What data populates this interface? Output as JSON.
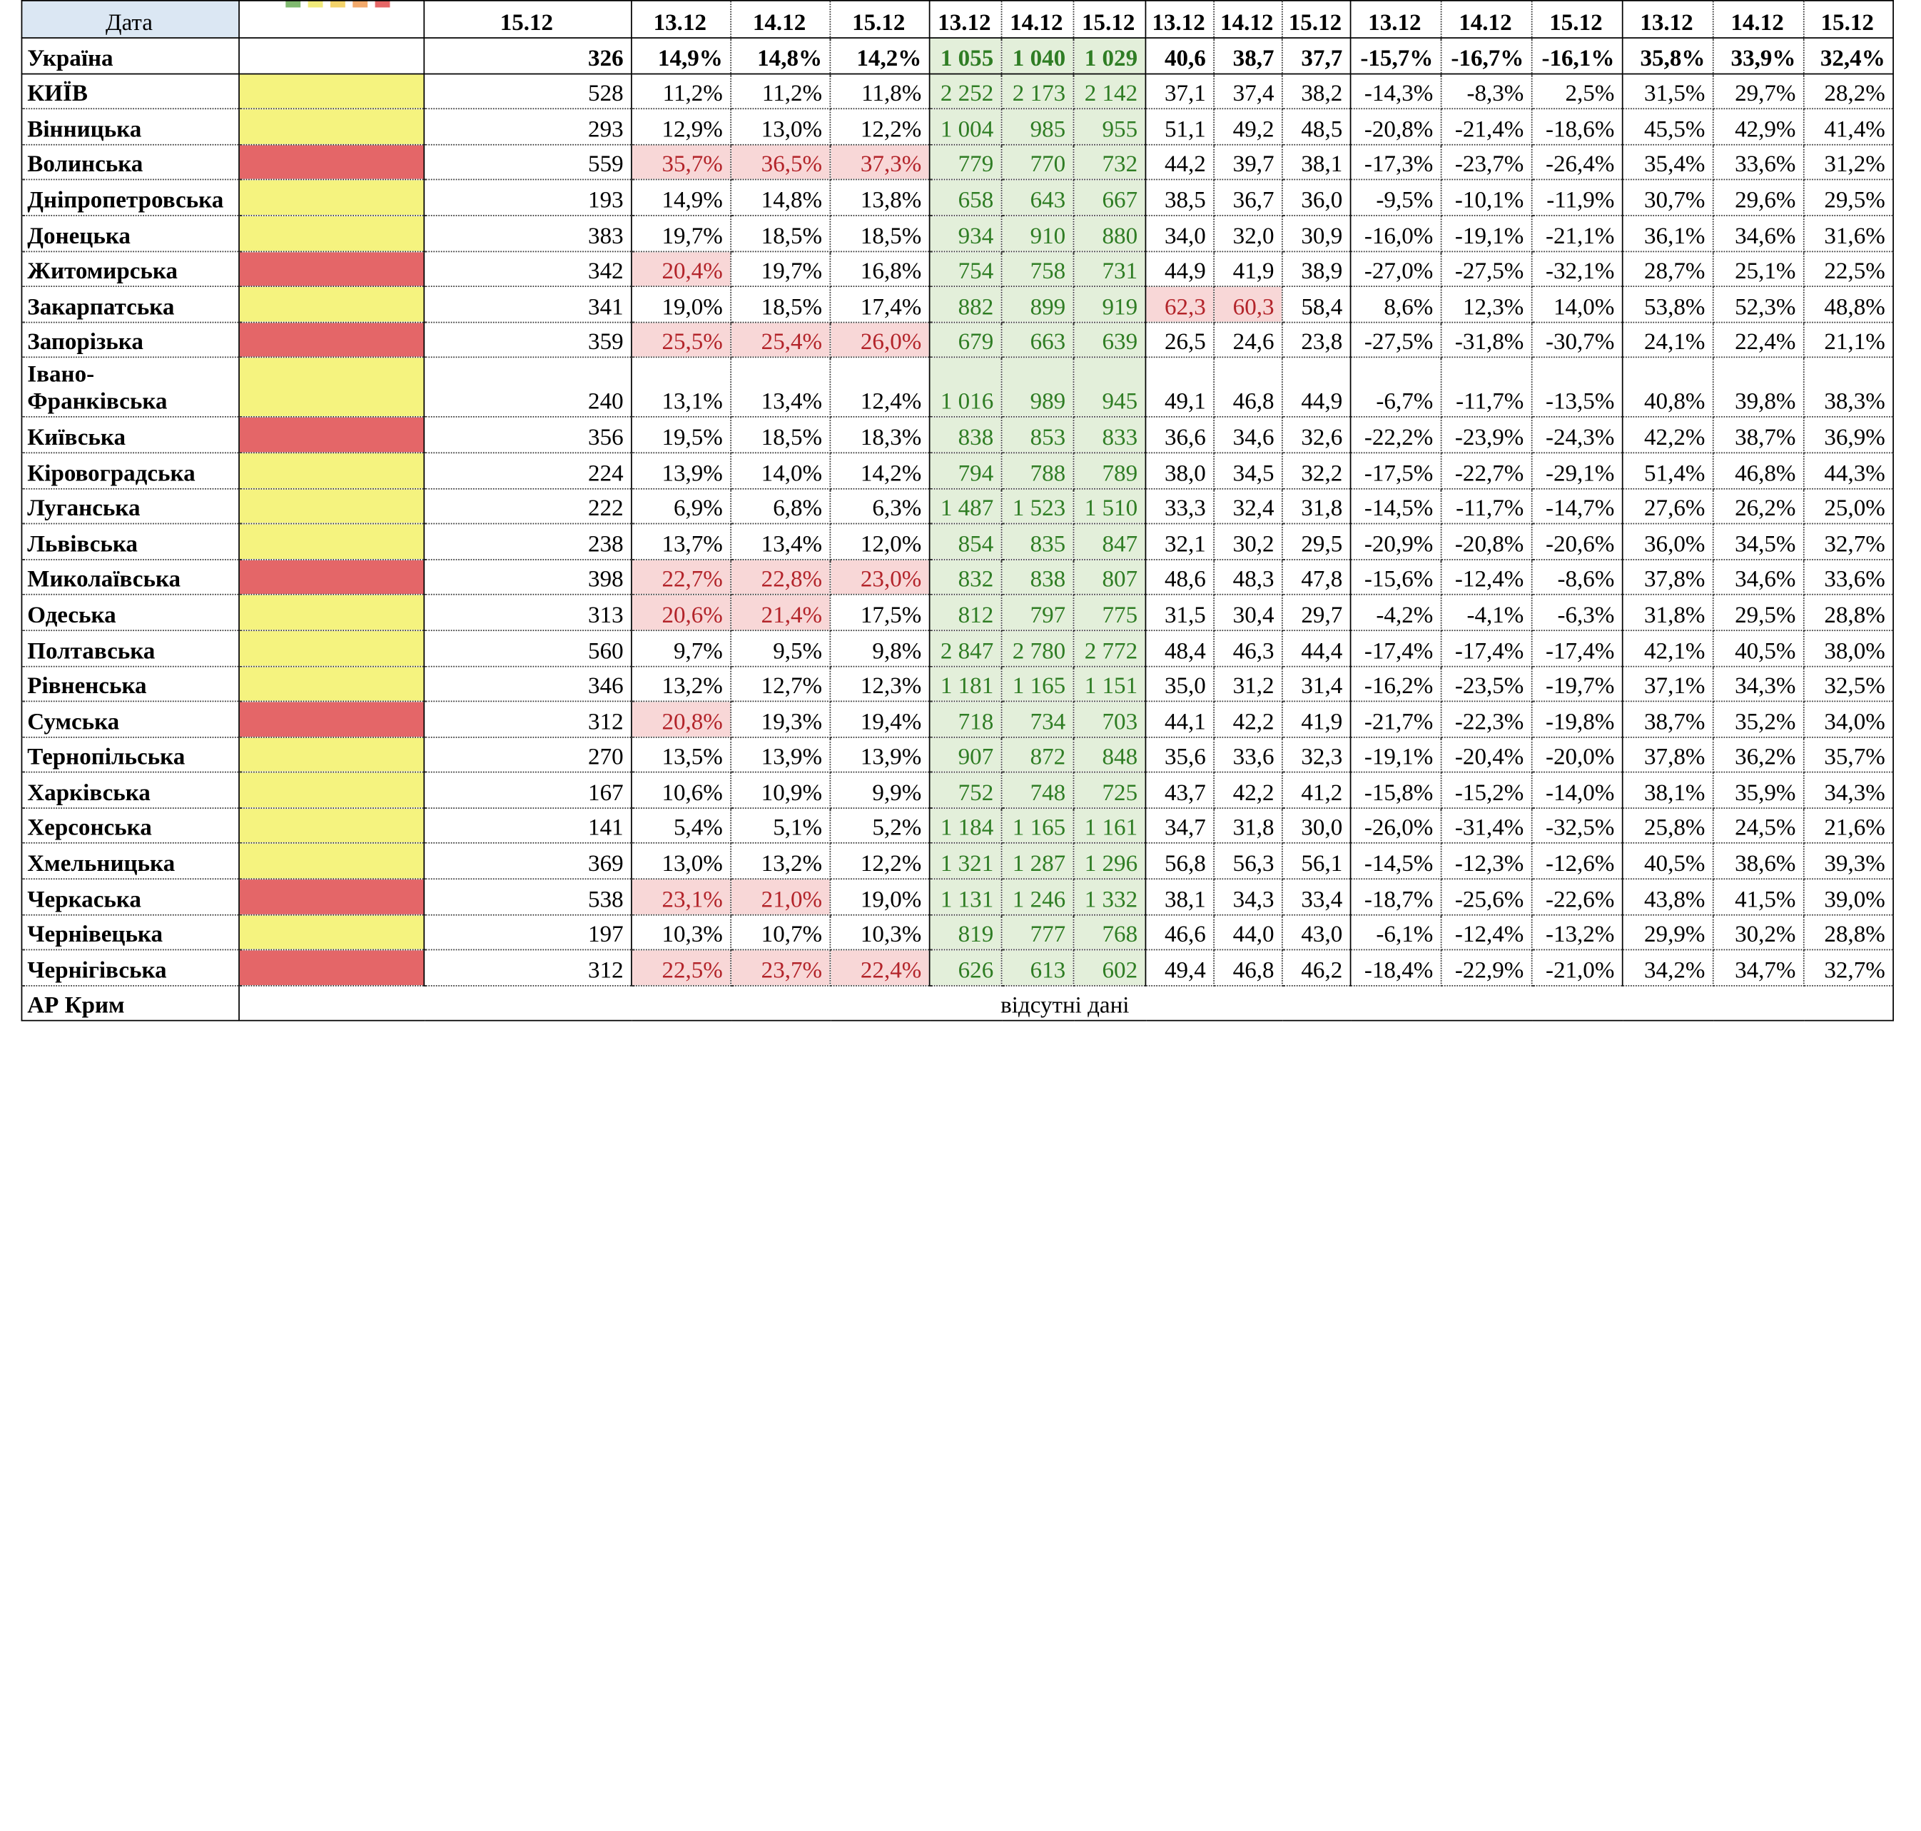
{
  "header": {
    "label": "Дата",
    "date_cols": [
      "15.12",
      "13.12",
      "14.12",
      "15.12",
      "13.12",
      "14.12",
      "15.12",
      "13.12",
      "14.12",
      "15.12",
      "13.12",
      "14.12",
      "15.12",
      "13.12",
      "14.12",
      "15.12"
    ]
  },
  "legend": [
    "#7fb86f",
    "#f0ea7a",
    "#f3d36a",
    "#f2a96b",
    "#e56767"
  ],
  "colors": {
    "yellow": "#f5f37f",
    "red": "#e46668",
    "pink": "#f8d7d7",
    "green": "#e3efda"
  },
  "ukraine": {
    "name": "Україна",
    "values": [
      "326",
      "14,9%",
      "14,8%",
      "14,2%",
      "1 055",
      "1 040",
      "1 029",
      "40,6",
      "38,7",
      "37,7",
      "-15,7%",
      "-16,7%",
      "-16,1%",
      "35,8%",
      "33,9%",
      "32,4%"
    ]
  },
  "rows": [
    {
      "name": "КИЇВ",
      "zone": "yellow",
      "values": [
        "528",
        "11,2%",
        "11,2%",
        "11,8%",
        "2 252",
        "2 173",
        "2 142",
        "37,1",
        "37,4",
        "38,2",
        "-14,3%",
        "-8,3%",
        "2,5%",
        "31,5%",
        "29,7%",
        "28,2%"
      ],
      "hl": []
    },
    {
      "name": "Вінницька",
      "zone": "yellow",
      "values": [
        "293",
        "12,9%",
        "13,0%",
        "12,2%",
        "1 004",
        "985",
        "955",
        "51,1",
        "49,2",
        "48,5",
        "-20,8%",
        "-21,4%",
        "-18,6%",
        "45,5%",
        "42,9%",
        "41,4%"
      ],
      "hl": []
    },
    {
      "name": "Волинська",
      "zone": "red",
      "values": [
        "559",
        "35,7%",
        "36,5%",
        "37,3%",
        "779",
        "770",
        "732",
        "44,2",
        "39,7",
        "38,1",
        "-17,3%",
        "-23,7%",
        "-26,4%",
        "35,4%",
        "33,6%",
        "31,2%"
      ],
      "hl": [
        1,
        2,
        3
      ]
    },
    {
      "name": "Дніпропетровська",
      "zone": "yellow",
      "values": [
        "193",
        "14,9%",
        "14,8%",
        "13,8%",
        "658",
        "643",
        "667",
        "38,5",
        "36,7",
        "36,0",
        "-9,5%",
        "-10,1%",
        "-11,9%",
        "30,7%",
        "29,6%",
        "29,5%"
      ],
      "hl": []
    },
    {
      "name": "Донецька",
      "zone": "yellow",
      "values": [
        "383",
        "19,7%",
        "18,5%",
        "18,5%",
        "934",
        "910",
        "880",
        "34,0",
        "32,0",
        "30,9",
        "-16,0%",
        "-19,1%",
        "-21,1%",
        "36,1%",
        "34,6%",
        "31,6%"
      ],
      "hl": []
    },
    {
      "name": "Житомирська",
      "zone": "red",
      "values": [
        "342",
        "20,4%",
        "19,7%",
        "16,8%",
        "754",
        "758",
        "731",
        "44,9",
        "41,9",
        "38,9",
        "-27,0%",
        "-27,5%",
        "-32,1%",
        "28,7%",
        "25,1%",
        "22,5%"
      ],
      "hl": [
        1
      ]
    },
    {
      "name": "Закарпатська",
      "zone": "yellow",
      "values": [
        "341",
        "19,0%",
        "18,5%",
        "17,4%",
        "882",
        "899",
        "919",
        "62,3",
        "60,3",
        "58,4",
        "8,6%",
        "12,3%",
        "14,0%",
        "53,8%",
        "52,3%",
        "48,8%"
      ],
      "hl": [
        7,
        8
      ]
    },
    {
      "name": "Запорізька",
      "zone": "red",
      "values": [
        "359",
        "25,5%",
        "25,4%",
        "26,0%",
        "679",
        "663",
        "639",
        "26,5",
        "24,6",
        "23,8",
        "-27,5%",
        "-31,8%",
        "-30,7%",
        "24,1%",
        "22,4%",
        "21,1%"
      ],
      "hl": [
        1,
        2,
        3
      ]
    },
    {
      "name": "Івано-Франківська",
      "zone": "yellow",
      "values": [
        "240",
        "13,1%",
        "13,4%",
        "12,4%",
        "1 016",
        "989",
        "945",
        "49,1",
        "46,8",
        "44,9",
        "-6,7%",
        "-11,7%",
        "-13,5%",
        "40,8%",
        "39,8%",
        "38,3%"
      ],
      "hl": [],
      "tall": true
    },
    {
      "name": "Київська",
      "zone": "red",
      "values": [
        "356",
        "19,5%",
        "18,5%",
        "18,3%",
        "838",
        "853",
        "833",
        "36,6",
        "34,6",
        "32,6",
        "-22,2%",
        "-23,9%",
        "-24,3%",
        "42,2%",
        "38,7%",
        "36,9%"
      ],
      "hl": []
    },
    {
      "name": "Кіровоградська",
      "zone": "yellow",
      "values": [
        "224",
        "13,9%",
        "14,0%",
        "14,2%",
        "794",
        "788",
        "789",
        "38,0",
        "34,5",
        "32,2",
        "-17,5%",
        "-22,7%",
        "-29,1%",
        "51,4%",
        "46,8%",
        "44,3%"
      ],
      "hl": []
    },
    {
      "name": "Луганська",
      "zone": "yellow",
      "values": [
        "222",
        "6,9%",
        "6,8%",
        "6,3%",
        "1 487",
        "1 523",
        "1 510",
        "33,3",
        "32,4",
        "31,8",
        "-14,5%",
        "-11,7%",
        "-14,7%",
        "27,6%",
        "26,2%",
        "25,0%"
      ],
      "hl": []
    },
    {
      "name": "Львівська",
      "zone": "yellow",
      "values": [
        "238",
        "13,7%",
        "13,4%",
        "12,0%",
        "854",
        "835",
        "847",
        "32,1",
        "30,2",
        "29,5",
        "-20,9%",
        "-20,8%",
        "-20,6%",
        "36,0%",
        "34,5%",
        "32,7%"
      ],
      "hl": []
    },
    {
      "name": "Миколаївська",
      "zone": "red",
      "values": [
        "398",
        "22,7%",
        "22,8%",
        "23,0%",
        "832",
        "838",
        "807",
        "48,6",
        "48,3",
        "47,8",
        "-15,6%",
        "-12,4%",
        "-8,6%",
        "37,8%",
        "34,6%",
        "33,6%"
      ],
      "hl": [
        1,
        2,
        3
      ]
    },
    {
      "name": "Одеська",
      "zone": "yellow",
      "values": [
        "313",
        "20,6%",
        "21,4%",
        "17,5%",
        "812",
        "797",
        "775",
        "31,5",
        "30,4",
        "29,7",
        "-4,2%",
        "-4,1%",
        "-6,3%",
        "31,8%",
        "29,5%",
        "28,8%"
      ],
      "hl": [
        1,
        2
      ]
    },
    {
      "name": "Полтавська",
      "zone": "yellow",
      "values": [
        "560",
        "9,7%",
        "9,5%",
        "9,8%",
        "2 847",
        "2 780",
        "2 772",
        "48,4",
        "46,3",
        "44,4",
        "-17,4%",
        "-17,4%",
        "-17,4%",
        "42,1%",
        "40,5%",
        "38,0%"
      ],
      "hl": []
    },
    {
      "name": "Рівненська",
      "zone": "yellow",
      "values": [
        "346",
        "13,2%",
        "12,7%",
        "12,3%",
        "1 181",
        "1 165",
        "1 151",
        "35,0",
        "31,2",
        "31,4",
        "-16,2%",
        "-23,5%",
        "-19,7%",
        "37,1%",
        "34,3%",
        "32,5%"
      ],
      "hl": []
    },
    {
      "name": "Сумська",
      "zone": "red",
      "values": [
        "312",
        "20,8%",
        "19,3%",
        "19,4%",
        "718",
        "734",
        "703",
        "44,1",
        "42,2",
        "41,9",
        "-21,7%",
        "-22,3%",
        "-19,8%",
        "38,7%",
        "35,2%",
        "34,0%"
      ],
      "hl": [
        1
      ]
    },
    {
      "name": "Тернопільська",
      "zone": "yellow",
      "values": [
        "270",
        "13,5%",
        "13,9%",
        "13,9%",
        "907",
        "872",
        "848",
        "35,6",
        "33,6",
        "32,3",
        "-19,1%",
        "-20,4%",
        "-20,0%",
        "37,8%",
        "36,2%",
        "35,7%"
      ],
      "hl": []
    },
    {
      "name": "Харківська",
      "zone": "yellow",
      "values": [
        "167",
        "10,6%",
        "10,9%",
        "9,9%",
        "752",
        "748",
        "725",
        "43,7",
        "42,2",
        "41,2",
        "-15,8%",
        "-15,2%",
        "-14,0%",
        "38,1%",
        "35,9%",
        "34,3%"
      ],
      "hl": []
    },
    {
      "name": "Херсонська",
      "zone": "yellow",
      "values": [
        "141",
        "5,4%",
        "5,1%",
        "5,2%",
        "1 184",
        "1 165",
        "1 161",
        "34,7",
        "31,8",
        "30,0",
        "-26,0%",
        "-31,4%",
        "-32,5%",
        "25,8%",
        "24,5%",
        "21,6%"
      ],
      "hl": []
    },
    {
      "name": "Хмельницька",
      "zone": "yellow",
      "values": [
        "369",
        "13,0%",
        "13,2%",
        "12,2%",
        "1 321",
        "1 287",
        "1 296",
        "56,8",
        "56,3",
        "56,1",
        "-14,5%",
        "-12,3%",
        "-12,6%",
        "40,5%",
        "38,6%",
        "39,3%"
      ],
      "hl": []
    },
    {
      "name": "Черкаська",
      "zone": "red",
      "values": [
        "538",
        "23,1%",
        "21,0%",
        "19,0%",
        "1 131",
        "1 246",
        "1 332",
        "38,1",
        "34,3",
        "33,4",
        "-18,7%",
        "-25,6%",
        "-22,6%",
        "43,8%",
        "41,5%",
        "39,0%"
      ],
      "hl": [
        1,
        2
      ]
    },
    {
      "name": "Чернівецька",
      "zone": "yellow",
      "values": [
        "197",
        "10,3%",
        "10,7%",
        "10,3%",
        "819",
        "777",
        "768",
        "46,6",
        "44,0",
        "43,0",
        "-6,1%",
        "-12,4%",
        "-13,2%",
        "29,9%",
        "30,2%",
        "28,8%"
      ],
      "hl": []
    },
    {
      "name": "Чернігівська",
      "zone": "red",
      "values": [
        "312",
        "22,5%",
        "23,7%",
        "22,4%",
        "626",
        "613",
        "602",
        "49,4",
        "46,8",
        "46,2",
        "-18,4%",
        "-22,9%",
        "-21,0%",
        "34,2%",
        "34,7%",
        "32,7%"
      ],
      "hl": [
        1,
        2,
        3
      ]
    }
  ],
  "crimea": {
    "name": "АР Крим",
    "note": "відсутні дані"
  }
}
